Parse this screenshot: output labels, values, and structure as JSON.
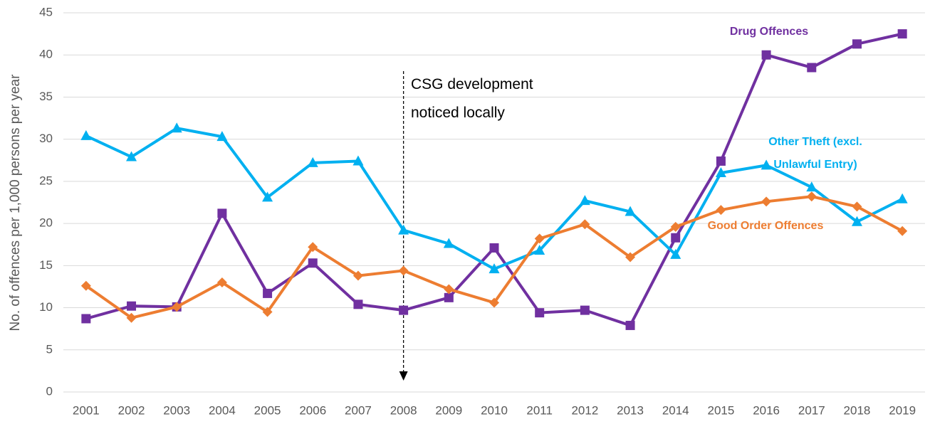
{
  "chart_data": {
    "type": "line",
    "y_label": "No. of offences per 1,000 persons per year",
    "annotation": "CSG development noticed locally",
    "categories": [
      "2001",
      "2002",
      "2003",
      "2004",
      "2005",
      "2006",
      "2007",
      "2008",
      "2009",
      "2010",
      "2011",
      "2012",
      "2013",
      "2014",
      "2015",
      "2016",
      "2017",
      "2018",
      "2019"
    ],
    "series": [
      {
        "name": "Drug Offences",
        "color": "#7030a0",
        "marker": "square",
        "values": [
          8.7,
          10.2,
          10.1,
          21.2,
          11.7,
          15.3,
          10.4,
          9.7,
          11.2,
          17.1,
          9.4,
          9.7,
          7.9,
          18.3,
          27.4,
          40.0,
          38.5,
          41.3,
          42.5
        ]
      },
      {
        "name": "Other Theft (excl. Unlawful Entry)",
        "color": "#00b0f0",
        "marker": "triangle",
        "values": [
          30.4,
          27.9,
          31.3,
          30.3,
          23.1,
          27.2,
          27.4,
          19.2,
          17.6,
          14.6,
          16.8,
          22.7,
          21.4,
          16.3,
          26.0,
          26.9,
          24.3,
          20.2,
          22.9
        ]
      },
      {
        "name": "Good Order Offences",
        "color": "#ed7d31",
        "marker": "diamond",
        "values": [
          12.6,
          8.8,
          10.1,
          13.0,
          9.5,
          17.2,
          13.8,
          14.4,
          12.2,
          10.6,
          18.2,
          19.9,
          16.0,
          19.6,
          21.6,
          22.6,
          23.2,
          22.0,
          19.1
        ]
      }
    ],
    "ylim": [
      0,
      45
    ],
    "yticks": [
      0,
      5,
      10,
      15,
      20,
      25,
      30,
      35,
      40,
      45
    ],
    "grid": true
  }
}
